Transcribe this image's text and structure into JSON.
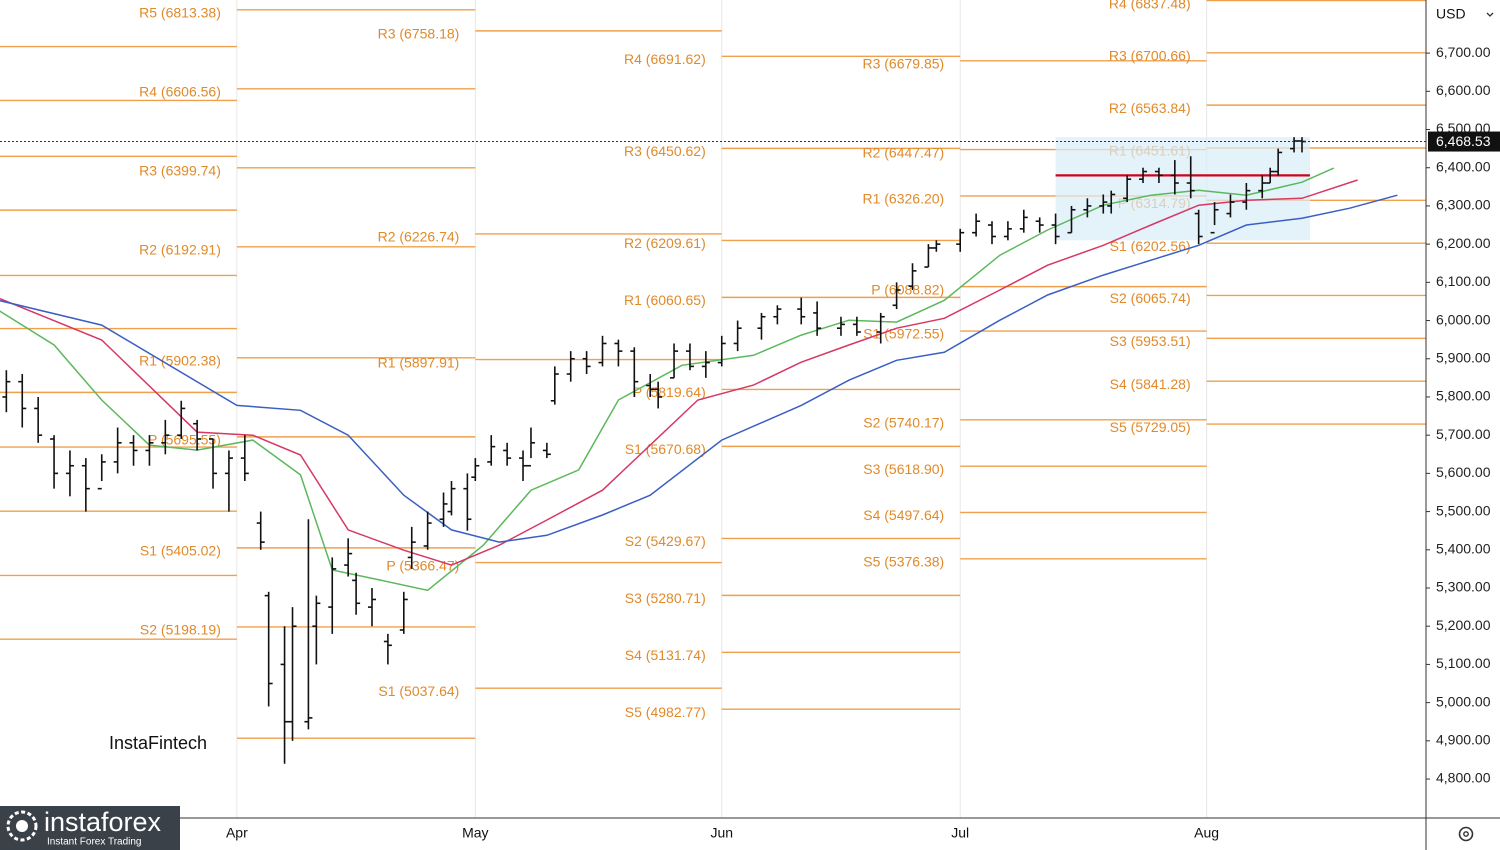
{
  "chart_data": {
    "type": "ohlc",
    "currency": "USD",
    "brand": "InstaFintech",
    "logo": {
      "name": "instaforex",
      "tagline": "Instant Forex Trading"
    },
    "xlim": [
      61.2,
      240.6
    ],
    "xticks": [
      {
        "value": 91,
        "label": "Apr"
      },
      {
        "value": 121,
        "label": "May"
      },
      {
        "value": 152,
        "label": "Jun"
      },
      {
        "value": 182,
        "label": "Jul"
      },
      {
        "value": 213,
        "label": "Aug"
      }
    ],
    "ylim": [
      4698,
      6839
    ],
    "yticks": [
      {
        "value": 4800,
        "label": "4,800.00"
      },
      {
        "value": 4900,
        "label": "4,900.00"
      },
      {
        "value": 5000,
        "label": "5,000.00"
      },
      {
        "value": 5100,
        "label": "5,100.00"
      },
      {
        "value": 5200,
        "label": "5,200.00"
      },
      {
        "value": 5300,
        "label": "5,300.00"
      },
      {
        "value": 5400,
        "label": "5,400.00"
      },
      {
        "value": 5500,
        "label": "5,500.00"
      },
      {
        "value": 5600,
        "label": "5,600.00"
      },
      {
        "value": 5700,
        "label": "5,700.00"
      },
      {
        "value": 5800,
        "label": "5,800.00"
      },
      {
        "value": 5900,
        "label": "5,900.00"
      },
      {
        "value": 6000,
        "label": "6,000.00"
      },
      {
        "value": 6100,
        "label": "6,100.00"
      },
      {
        "value": 6200,
        "label": "6,200.00"
      },
      {
        "value": 6300,
        "label": "6,300.00"
      },
      {
        "value": 6400,
        "label": "6,400.00"
      },
      {
        "value": 6500,
        "label": "6,500.00"
      },
      {
        "value": 6600,
        "label": "6,600.00"
      },
      {
        "value": 6700,
        "label": "6,700.00"
      }
    ],
    "last": {
      "value": 6468.53,
      "label": "6,468.53"
    },
    "pivot_color": "#f0a04b",
    "pivot_label_color": "#e08a2a",
    "pivots": [
      {
        "start": 61.2,
        "levels": [
          {
            "value": 6717
          },
          {
            "value": 6576
          },
          {
            "value": 6430
          },
          {
            "value": 6289
          },
          {
            "value": 6118
          },
          {
            "value": 5979
          },
          {
            "value": 5812
          },
          {
            "value": 5669
          },
          {
            "value": 5501
          },
          {
            "value": 5333
          },
          {
            "value": 5166
          }
        ]
      },
      {
        "start": 91,
        "levels": [
          {
            "label": "R5 (6813.38)",
            "value": 6813.38
          },
          {
            "label": "R4 (6606.56)",
            "value": 6606.56
          },
          {
            "label": "R3 (6399.74)",
            "value": 6399.74
          },
          {
            "label": "R2 (6192.91)",
            "value": 6192.91
          },
          {
            "label": "R1 (5902.38)",
            "value": 5902.38
          },
          {
            "label": "P (5695.55)",
            "value": 5695.55
          },
          {
            "label": "S1 (5405.02)",
            "value": 5405.02
          },
          {
            "label": "S2 (5198.19)",
            "value": 5198.19
          },
          {
            "value": 4907
          }
        ]
      },
      {
        "start": 121,
        "levels": [
          {
            "label": "R3 (6758.18)",
            "value": 6758.18
          },
          {
            "label": "R2 (6226.74)",
            "value": 6226.74
          },
          {
            "label": "R1 (5897.91)",
            "value": 5897.91
          },
          {
            "label": "P (5366.47)",
            "value": 5366.47
          },
          {
            "label": "S1 (5037.64)",
            "value": 5037.64
          }
        ]
      },
      {
        "start": 152,
        "levels": [
          {
            "label": "R4 (6691.62)",
            "value": 6691.62
          },
          {
            "label": "R3 (6450.62)",
            "value": 6450.62
          },
          {
            "label": "R2 (6209.61)",
            "value": 6209.61
          },
          {
            "label": "R1 (6060.65)",
            "value": 6060.65
          },
          {
            "label": "P (5819.64)",
            "value": 5819.64
          },
          {
            "label": "S1 (5670.68)",
            "value": 5670.68
          },
          {
            "label": "S2 (5429.67)",
            "value": 5429.67
          },
          {
            "label": "S3 (5280.71)",
            "value": 5280.71
          },
          {
            "label": "S4 (5131.74)",
            "value": 5131.74
          },
          {
            "label": "S5 (4982.77)",
            "value": 4982.77
          }
        ]
      },
      {
        "start": 182,
        "levels": [
          {
            "label": "R3 (6679.85)",
            "value": 6679.85
          },
          {
            "label": "R2 (6447.47)",
            "value": 6447.47
          },
          {
            "label": "R1 (6326.20)",
            "value": 6326.2
          },
          {
            "label": "P (6088.82)",
            "value": 6088.82
          },
          {
            "label": "S1 (5972.55)",
            "value": 5972.55
          },
          {
            "label": "S2 (5740.17)",
            "value": 5740.17
          },
          {
            "label": "S3 (5618.90)",
            "value": 5618.9
          },
          {
            "label": "S4 (5497.64)",
            "value": 5497.64
          },
          {
            "label": "S5 (5376.38)",
            "value": 5376.38
          }
        ]
      },
      {
        "start": 213,
        "levels": [
          {
            "label": "R4 (6837.48)",
            "value": 6837.48
          },
          {
            "label": "R3 (6700.66)",
            "value": 6700.66
          },
          {
            "label": "R2 (6563.84)",
            "value": 6563.84
          },
          {
            "label": "R1 (6451.61)",
            "value": 6451.61
          },
          {
            "label": "P (6314.79)",
            "value": 6314.79
          },
          {
            "label": "S1 (6202.56)",
            "value": 6202.56
          },
          {
            "label": "S2 (6065.74)",
            "value": 6065.74
          },
          {
            "label": "S3 (5953.51)",
            "value": 5953.51
          },
          {
            "label": "S4 (5841.28)",
            "value": 5841.28
          },
          {
            "label": "S5 (5729.05)",
            "value": 5729.05
          }
        ]
      }
    ],
    "volume_profile": {
      "x": [
        194,
        226
      ],
      "high": 6480,
      "low": 6210,
      "poc": 6380,
      "color": "#d9ecf8",
      "poc_color": "#d0021b"
    },
    "series": [
      {
        "color": "#5cb85c",
        "x": [
          61,
          68,
          74,
          80,
          86,
          93,
          99,
          103,
          109,
          115,
          122,
          128,
          134,
          139,
          147,
          156,
          162,
          168,
          174,
          180,
          187,
          193,
          200,
          206,
          212,
          218,
          225,
          229
        ],
        "values": [
          6027,
          5936,
          5792,
          5674,
          5661,
          5687,
          5596,
          5347,
          5321,
          5294,
          5412,
          5556,
          5609,
          5792,
          5883,
          5909,
          5962,
          6001,
          5996,
          6053,
          6171,
          6237,
          6302,
          6328,
          6341,
          6328,
          6362,
          6399
        ]
      },
      {
        "color": "#d63864",
        "x": [
          61,
          74,
          86,
          93,
          99,
          105,
          112,
          118,
          124,
          130,
          137,
          143,
          149,
          156,
          162,
          168,
          174,
          180,
          187,
          193,
          200,
          206,
          212,
          218,
          225,
          232
        ],
        "values": [
          6059,
          5949,
          5708,
          5700,
          5648,
          5452,
          5399,
          5360,
          5412,
          5478,
          5556,
          5674,
          5792,
          5831,
          5891,
          5936,
          5980,
          6006,
          6080,
          6145,
          6197,
          6250,
          6302,
          6315,
          6320,
          6368
        ]
      },
      {
        "color": "#3a5fc4",
        "x": [
          61,
          74,
          91,
          99,
          105,
          112,
          118,
          124,
          130,
          137,
          143,
          152,
          162,
          168,
          174,
          180,
          187,
          193,
          200,
          206,
          212,
          218,
          225,
          231,
          237
        ],
        "values": [
          6053,
          5988,
          5778,
          5765,
          5700,
          5543,
          5452,
          5420,
          5438,
          5491,
          5543,
          5687,
          5778,
          5844,
          5896,
          5917,
          6001,
          6067,
          6119,
          6158,
          6197,
          6250,
          6268,
          6294,
          6328
        ]
      }
    ],
    "bars": {
      "color": "#111111",
      "x": [
        62,
        64,
        66,
        68,
        70,
        72,
        74,
        76,
        78,
        80,
        82,
        84,
        86,
        88,
        90,
        92,
        94,
        95,
        97,
        98,
        100,
        101,
        103,
        105,
        106,
        108,
        110,
        112,
        113,
        115,
        117,
        118,
        120,
        121,
        123,
        125,
        127,
        128,
        130,
        131,
        133,
        135,
        137,
        139,
        141,
        143,
        144,
        146,
        148,
        150,
        152,
        154,
        157,
        159,
        162,
        164,
        167,
        169,
        172,
        174,
        176,
        178,
        179,
        182,
        184,
        186,
        188,
        190,
        192,
        194,
        196,
        198,
        200,
        201,
        203,
        205,
        207,
        209,
        211,
        212,
        214,
        216,
        218,
        220,
        221,
        222,
        224,
        225
      ],
      "open": [
        5800,
        5840,
        5770,
        5690,
        5600,
        5620,
        5560,
        5630,
        5680,
        5660,
        5680,
        5700,
        5730,
        5690,
        5600,
        5640,
        5470,
        5280,
        5100,
        4950,
        4950,
        5200,
        5250,
        5360,
        5320,
        5250,
        5160,
        5190,
        5380,
        5410,
        5480,
        5500,
        5560,
        5590,
        5630,
        5660,
        5640,
        5620,
        5660,
        5790,
        5860,
        5900,
        5890,
        5940,
        5920,
        5830,
        5820,
        5850,
        5920,
        5880,
        5890,
        5940,
        5980,
        6010,
        6030,
        6020,
        5980,
        5990,
        5970,
        6040,
        6090,
        6140,
        6190,
        6200,
        6230,
        6250,
        6220,
        6240,
        6260,
        6250,
        6230,
        6290,
        6300,
        6300,
        6320,
        6370,
        6390,
        6380,
        6360,
        6280,
        6230,
        6280,
        6310,
        6340,
        6360,
        6390,
        6450,
        6470
      ],
      "high": [
        5870,
        5860,
        5800,
        5700,
        5660,
        5640,
        5650,
        5720,
        5700,
        5700,
        5740,
        5790,
        5740,
        5690,
        5660,
        5700,
        5500,
        5290,
        5200,
        5250,
        5480,
        5280,
        5380,
        5430,
        5340,
        5300,
        5180,
        5290,
        5460,
        5500,
        5550,
        5580,
        5600,
        5640,
        5700,
        5680,
        5660,
        5720,
        5680,
        5880,
        5920,
        5920,
        5960,
        5950,
        5930,
        5860,
        5840,
        5940,
        5940,
        5920,
        5960,
        6000,
        6020,
        6040,
        6060,
        6050,
        6010,
        6010,
        6020,
        6100,
        6150,
        6200,
        6210,
        6240,
        6280,
        6260,
        6260,
        6290,
        6270,
        6280,
        6300,
        6320,
        6330,
        6340,
        6380,
        6400,
        6400,
        6420,
        6430,
        6290,
        6310,
        6330,
        6360,
        6380,
        6400,
        6450,
        6480,
        6480
      ],
      "low": [
        5760,
        5720,
        5680,
        5560,
        5540,
        5500,
        5580,
        5600,
        5620,
        5620,
        5650,
        5690,
        5660,
        5560,
        5500,
        5580,
        5400,
        4990,
        4840,
        4900,
        4930,
        5100,
        5180,
        5330,
        5230,
        5200,
        5100,
        5180,
        5350,
        5400,
        5460,
        5490,
        5450,
        5580,
        5620,
        5620,
        5580,
        5640,
        5640,
        5780,
        5840,
        5860,
        5880,
        5880,
        5800,
        5800,
        5770,
        5850,
        5870,
        5850,
        5880,
        5920,
        5950,
        5990,
        5990,
        5960,
        5960,
        5960,
        5940,
        6030,
        6080,
        6140,
        6180,
        6180,
        6220,
        6200,
        6210,
        6230,
        6230,
        6200,
        6230,
        6270,
        6280,
        6280,
        6310,
        6360,
        6360,
        6330,
        6320,
        6200,
        6250,
        6270,
        6290,
        6320,
        6360,
        6380,
        6440,
        6440
      ],
      "close": [
        5840,
        5770,
        5700,
        5600,
        5620,
        5560,
        5630,
        5680,
        5660,
        5680,
        5700,
        5770,
        5690,
        5600,
        5640,
        5600,
        5420,
        5050,
        4950,
        5200,
        4960,
        5260,
        5350,
        5390,
        5260,
        5270,
        5150,
        5270,
        5420,
        5470,
        5520,
        5560,
        5480,
        5620,
        5670,
        5640,
        5620,
        5680,
        5650,
        5860,
        5900,
        5880,
        5940,
        5920,
        5840,
        5820,
        5800,
        5920,
        5880,
        5890,
        5940,
        5980,
        6010,
        6030,
        6010,
        5980,
        5990,
        5970,
        6010,
        6080,
        6130,
        6190,
        6200,
        6230,
        6260,
        6220,
        6240,
        6270,
        6250,
        6220,
        6290,
        6300,
        6310,
        6330,
        6370,
        6390,
        6380,
        6360,
        6340,
        6220,
        6290,
        6310,
        6340,
        6360,
        6390,
        6440,
        6470,
        6468.53
      ]
    }
  }
}
